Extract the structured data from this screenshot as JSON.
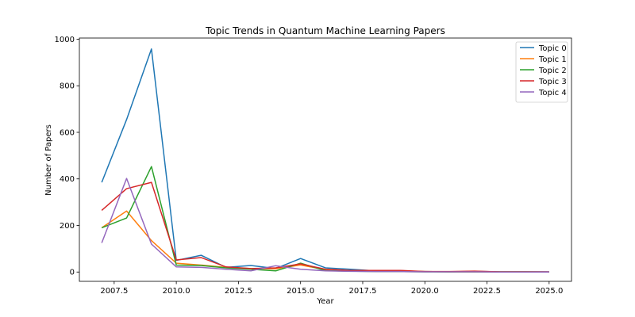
{
  "chart_data": {
    "type": "line",
    "title": "Topic Trends in Quantum Machine Learning Papers",
    "xlabel": "Year",
    "ylabel": "Number of Papers",
    "xlim": [
      2006.1,
      2025.9
    ],
    "ylim": [
      -40,
      1005
    ],
    "xticks": [
      2007.5,
      2010.0,
      2012.5,
      2015.0,
      2017.5,
      2020.0,
      2022.5,
      2025.0
    ],
    "xtick_labels": [
      "2007.5",
      "2010.0",
      "2012.5",
      "2015.0",
      "2017.5",
      "2020.0",
      "2022.5",
      "2025.0"
    ],
    "yticks": [
      0,
      200,
      400,
      600,
      800,
      1000
    ],
    "ytick_labels": [
      "0",
      "200",
      "400",
      "600",
      "800",
      "1000"
    ],
    "grid": false,
    "legend_position": "top-right",
    "x": [
      2007,
      2008,
      2009,
      2010,
      2011,
      2012,
      2013,
      2014,
      2015,
      2016,
      2017,
      2018,
      2019,
      2020,
      2021,
      2022,
      2023,
      2024,
      2025
    ],
    "series": [
      {
        "name": "Topic 0",
        "color": "#1f77b4",
        "values": [
          385,
          655,
          958,
          50,
          72,
          20,
          28,
          15,
          58,
          18,
          12,
          5,
          5,
          2,
          1,
          3,
          1,
          1,
          1
        ]
      },
      {
        "name": "Topic 1",
        "color": "#ff7f0e",
        "values": [
          190,
          262,
          135,
          38,
          30,
          20,
          15,
          14,
          30,
          10,
          5,
          5,
          4,
          2,
          1,
          1,
          1,
          1,
          0
        ]
      },
      {
        "name": "Topic 2",
        "color": "#2ca02c",
        "values": [
          190,
          232,
          453,
          30,
          28,
          18,
          12,
          5,
          38,
          6,
          4,
          2,
          2,
          1,
          1,
          1,
          1,
          1,
          0
        ]
      },
      {
        "name": "Topic 3",
        "color": "#d62728",
        "values": [
          265,
          358,
          385,
          52,
          62,
          22,
          15,
          18,
          35,
          12,
          7,
          7,
          7,
          2,
          2,
          4,
          1,
          1,
          1
        ]
      },
      {
        "name": "Topic 4",
        "color": "#9467bd",
        "values": [
          125,
          402,
          120,
          22,
          20,
          12,
          5,
          27,
          12,
          5,
          3,
          2,
          2,
          1,
          1,
          1,
          0,
          0,
          0
        ]
      }
    ]
  }
}
